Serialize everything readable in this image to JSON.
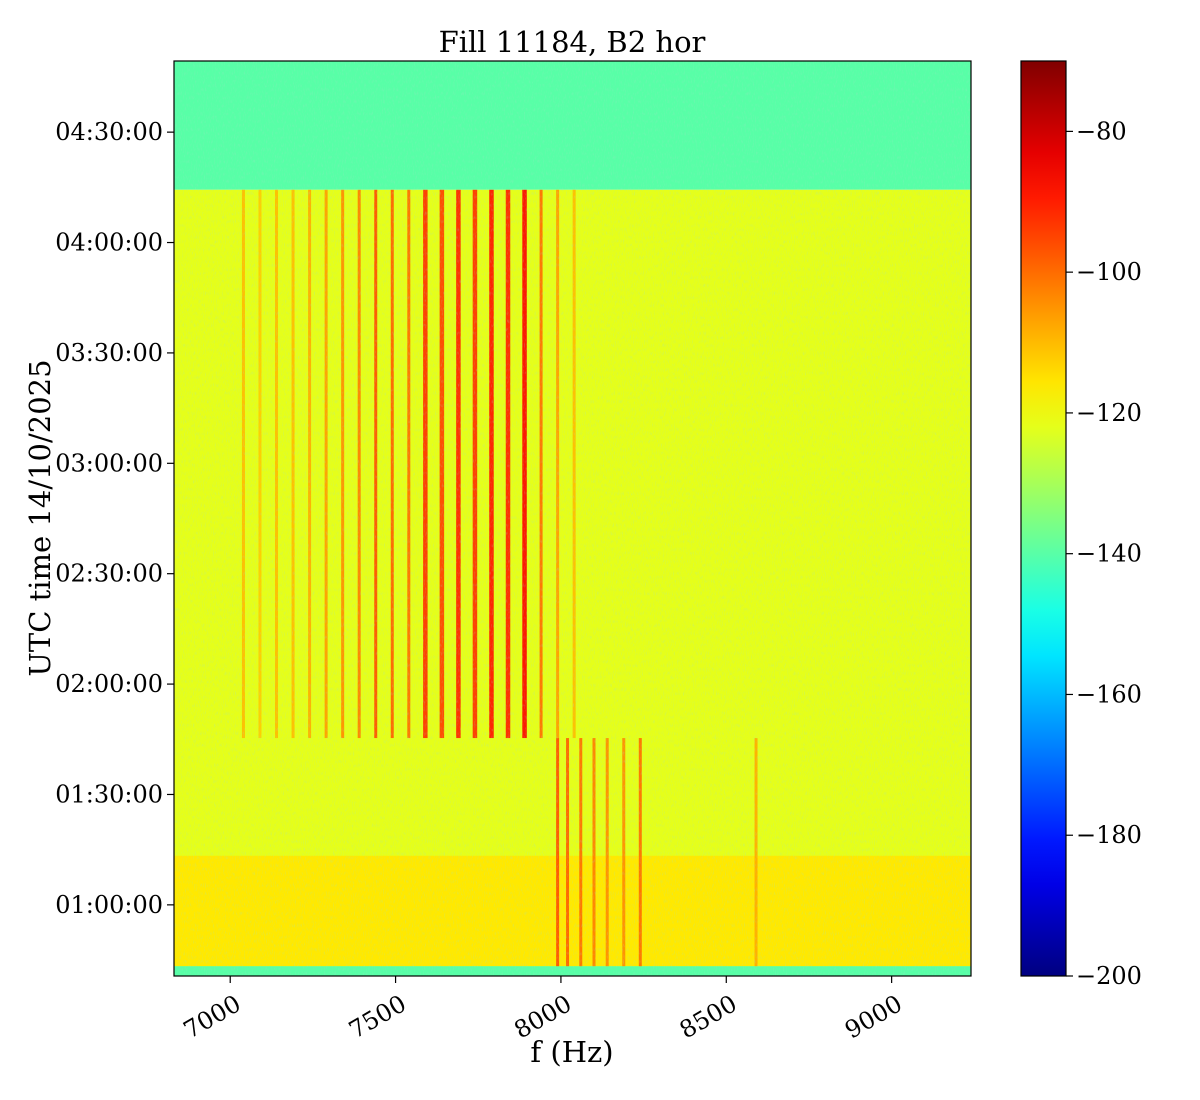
{
  "chart_data": {
    "type": "heatmap",
    "title": "Fill 11184, B2 hor",
    "xlabel": "f (Hz)",
    "ylabel": "UTC time 14/10/2025",
    "xlim": [
      6830,
      9240
    ],
    "ylim_seconds_of_day": [
      2440,
      17360
    ],
    "x_ticks": [
      {
        "value": 7000,
        "label": "7000"
      },
      {
        "value": 7500,
        "label": "7500"
      },
      {
        "value": 8000,
        "label": "8000"
      },
      {
        "value": 8500,
        "label": "8500"
      },
      {
        "value": 9000,
        "label": "9000"
      }
    ],
    "y_ticks": [
      {
        "value": 3600,
        "label": "01:00:00"
      },
      {
        "value": 5400,
        "label": "01:30:00"
      },
      {
        "value": 7200,
        "label": "02:00:00"
      },
      {
        "value": 9000,
        "label": "02:30:00"
      },
      {
        "value": 10800,
        "label": "03:00:00"
      },
      {
        "value": 12600,
        "label": "03:30:00"
      },
      {
        "value": 14400,
        "label": "04:00:00"
      },
      {
        "value": 16200,
        "label": "04:30:00"
      }
    ],
    "colorbar": {
      "colormap": "jet",
      "vmin": -200,
      "vmax": -70,
      "ticks": [
        {
          "value": -80,
          "label": "−80"
        },
        {
          "value": -100,
          "label": "−100"
        },
        {
          "value": -120,
          "label": "−120"
        },
        {
          "value": -140,
          "label": "−140"
        },
        {
          "value": -160,
          "label": "−160"
        },
        {
          "value": -180,
          "label": "−180"
        },
        {
          "value": -200,
          "label": "−200"
        }
      ]
    },
    "regions": [
      {
        "t_start": 15260,
        "t_end": 17360,
        "f_start": 6830,
        "f_end": 9240,
        "level": -140
      },
      {
        "t_start": 2440,
        "t_end": 15260,
        "f_start": 6830,
        "f_end": 9240,
        "level": -122
      },
      {
        "t_start": 2600,
        "t_end": 4400,
        "f_start": 6830,
        "f_end": 9240,
        "level": -116
      },
      {
        "t_start": 2440,
        "t_end": 2600,
        "f_start": 6830,
        "f_end": 9240,
        "level": -140
      }
    ],
    "lines": {
      "early_group": {
        "t_start": 6320,
        "t_end": 15260,
        "frequencies": [
          7040,
          7090,
          7140,
          7190,
          7240,
          7290,
          7340,
          7390,
          7440,
          7490,
          7540,
          7590,
          7640,
          7690,
          7740,
          7790,
          7840,
          7890,
          7940,
          7990,
          8040
        ],
        "levels": [
          -110,
          -112,
          -110,
          -110,
          -108,
          -106,
          -104,
          -102,
          -96,
          -98,
          -100,
          -92,
          -94,
          -90,
          -92,
          -88,
          -90,
          -86,
          -100,
          -106,
          -110
        ]
      },
      "late_group": {
        "t_start": 2600,
        "t_end": 6320,
        "frequencies": [
          7990,
          8020,
          8060,
          8100,
          8140,
          8190,
          8240,
          8590
        ],
        "levels": [
          -96,
          -98,
          -100,
          -102,
          -104,
          -104,
          -100,
          -108
        ]
      }
    }
  }
}
